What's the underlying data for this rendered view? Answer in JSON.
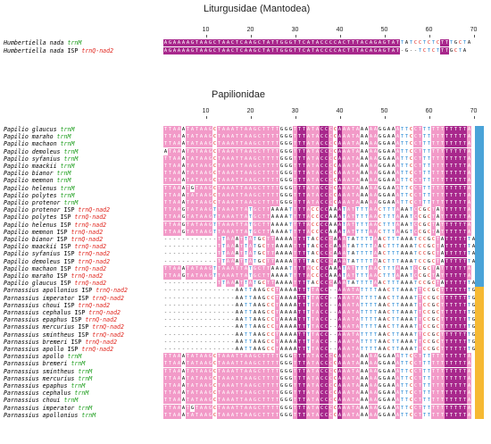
{
  "panel_top": {
    "title": "Liturgusidae (Mantodea)",
    "ruler": [
      "10",
      "20",
      "30",
      "40",
      "50",
      "60",
      "70"
    ],
    "rows": [
      {
        "species": "Humbertiella nada",
        "isp": "",
        "gene": "trnM",
        "gene_color": "#1e9e1e",
        "seq": "AGAAAAGTAAGCTAACTCAAGCTATTGGGTTCATACCCCACTTTACAGAGTATTATCCTCTCTTTGCTA"
      },
      {
        "species": "Humbertiella nada",
        "isp": "ISP",
        "gene": "trnQ-nad2",
        "gene_color": "#e0251d",
        "seq": "AGAAAAGTAAGCTAACTCAAGCTATTGGGTTCATACCCCACTTTACAGAGTAT-G--TCTCTTTGCTA"
      }
    ]
  },
  "panel_bottom": {
    "title": "Papilionidae",
    "ruler": [
      "10",
      "20",
      "30",
      "40",
      "50",
      "60",
      "70"
    ],
    "rows": [
      {
        "species": "Papilio glaucus",
        "isp": "",
        "gene": "trnM",
        "gene_color": "#1e9e1e",
        "seq": "TTAAATATAAGCTAAATTAAGCTTTTGGGTTTATACCCCAAATAAAAAGGAAATTCCTTTTTTTTTTTA"
      },
      {
        "species": "Papilio maraho",
        "isp": "",
        "gene": "trnM",
        "gene_color": "#1e9e1e",
        "seq": "TTAAATATAAGCTAAATTAAGCTTTTGGGTTTATACCCCAAATAAAAAGGAAATTCCTTTTTTTTTTTA"
      },
      {
        "species": "Papilio machaon",
        "isp": "",
        "gene": "trnM",
        "gene_color": "#1e9e1e",
        "seq": "TTAAATATAAGCTAAATTAAGCTTTTGGGTTTATACCCCAAATAAAAAGGAAATTCCTTTTTTTTTTTA"
      },
      {
        "species": "Papilio demoleus",
        "isp": "",
        "gene": "trnM",
        "gene_color": "#1e9e1e",
        "seq": "ATAAATATAAGCTAAATTAAGCTTTTGGGTTTATACCCCAAATAAAAAGGAAATTCCTTTTTTTTTTTA"
      },
      {
        "species": "Papilio syfanius",
        "isp": "",
        "gene": "trnM",
        "gene_color": "#1e9e1e",
        "seq": "TTAAATATAAGCTAAATTAAGCTTTTGGGTTTATACCCCAAATAAAAAGGAAATTCCTTTTTTTTTTTA"
      },
      {
        "species": "Papilio maackii",
        "isp": "",
        "gene": "trnM",
        "gene_color": "#1e9e1e",
        "seq": "TTAAATATAAGCTAAATTAAGCTTTTGGGTTTATACCCCAAATAAAAAGGAAATTCCTTTTTTTTTTTA"
      },
      {
        "species": "Papilio bianor",
        "isp": "",
        "gene": "trnM",
        "gene_color": "#1e9e1e",
        "seq": "TTAAATATAAGCTAAATTAAGCTTTTGGGTTTATACCCCAAATAAAAAGGAAATTCCTTTTTTTTTTTA"
      },
      {
        "species": "Papilio memnon",
        "isp": "",
        "gene": "trnM",
        "gene_color": "#1e9e1e",
        "seq": "TTAAATATAAGCTAAATTAAGCTTTTGGGTTTATACCCCAAATAAAAAGGAAATTCCTTTTTTTTTTTA"
      },
      {
        "species": "Papilio helenus",
        "isp": "",
        "gene": "trnM",
        "gene_color": "#1e9e1e",
        "seq": "TTAAATGTAAGCTAAATTAAGCTTTTGGGTTTATACCCCAAATAAAAAGGAAATTCCTTTTTTTTTTTA"
      },
      {
        "species": "Papilio polytes",
        "isp": "",
        "gene": "trnM",
        "gene_color": "#1e9e1e",
        "seq": "TTAAATATAAGCTAAATTAAGCTTTTGGGTTTATACCCCAAATAAAAAGGAAATTCCTTTTTTTTTTTA"
      },
      {
        "species": "Papilio protenor",
        "isp": "",
        "gene": "trnM",
        "gene_color": "#1e9e1e",
        "seq": "TTAAATATAAGCTAAATTAAGCTTTTGGGTTTATACCCCAAATAAAAAGGAAATTCCTTTTTTTTTTTA"
      },
      {
        "species": "Papilio protenor",
        "isp": "ISP",
        "gene": "trnQ-nad2",
        "gene_color": "#e0251d",
        "seq": "TTAAGTATAAGTTAAATTATGCTTAAAATTTTACCCCAAATATTTTAACTTTAAATCCGCTATTTTTTA"
      },
      {
        "species": "Papilio polytes",
        "isp": "ISP",
        "gene": "trnQ-nad2",
        "gene_color": "#e0251d",
        "seq": "TTAAGTATAAGTTAAATTATGCTTAAAATTTTACCCCAAATATTTTAACTTTAAATCCGCTATTTTTTA"
      },
      {
        "species": "Papilio helenus",
        "isp": "ISP",
        "gene": "trnQ-nad2",
        "gene_color": "#e0251d",
        "seq": "TTAAGTATAAGTTAAATTATGCTTAAAATTTTACCCCAAATATTTTAACTTTAAATCCGCTATTTTTTA"
      },
      {
        "species": "Papilio memnon",
        "isp": "ISP",
        "gene": "trnQ-nad2",
        "gene_color": "#e0251d",
        "seq": "TTAAGTATAAGTTAAATTATGCTTAAAATTTTACCCCAAATATTTTAACTTTAAGTCCGCTATTTTTTA"
      },
      {
        "species": "Papilio bianor",
        "isp": "ISP",
        "gene": "trnQ-nad2",
        "gene_color": "#e0251d",
        "seq": "------------TTAAATTATGCTTAAAATTTTACCCCAAATATTTTAACTTTAAATCCGCTATTTTTTA"
      },
      {
        "species": "Papilio maackii",
        "isp": "ISP",
        "gene": "trnQ-nad2",
        "gene_color": "#e0251d",
        "seq": "------------TTAAATTATGCTTAAAATTTTACCCCAAATATTTTAACTTTAAATCCGCTATTTTTTA"
      },
      {
        "species": "Papilio syfanius",
        "isp": "ISP",
        "gene": "trnQ-nad2",
        "gene_color": "#e0251d",
        "seq": "------------TTAAATTATGCTTAAAATTTTACCCCAAATATTTTAACTTTAAATCCGCTATTTTTTA"
      },
      {
        "species": "Papilio demoleus",
        "isp": "ISP",
        "gene": "trnQ-nad2",
        "gene_color": "#e0251d",
        "seq": "------------TTAAATTATGCTTAAAATTTTACCCCAAATATTTTAACTTTAAATCCGCTATTTTTTA"
      },
      {
        "species": "Papilio machaon",
        "isp": "ISP",
        "gene": "trnQ-nad2",
        "gene_color": "#e0251d",
        "seq": "TTAAATATAAGTTAAATTATGCTTAAAATTTTACCCCAAATATTTTAACTTTAAATCCGCTATTTTTTA"
      },
      {
        "species": "Papilio maraho",
        "isp": "ISP",
        "gene": "trnQ-nad2",
        "gene_color": "#e0251d",
        "seq": "TTAAGTATAAGTTAAATTATGCTTAAAATTTTACCCCAAATATTTTAACTTTAAATCCGCTATTTTTTA"
      },
      {
        "species": "Papilio glaucus",
        "isp": "ISP",
        "gene": "trnQ-nad2",
        "gene_color": "#e0251d",
        "seq": "------------TTAAATTATGCTTAAAATTTTACCCCAAATATTTTAACTTTAAATCCGCTATTTTTTA"
      },
      {
        "species": "Parnassius apollonius",
        "isp": "ISP",
        "gene": "trnQ-nad2",
        "gene_color": "#e0251d",
        "seq": "----------------AATTAAGCCTAAAATTTTACC--AAATATTTTAACTTAAATTCCGCTTTTTTTG"
      },
      {
        "species": "Parnassius imperator",
        "isp": "ISP",
        "gene": "trnQ-nad2",
        "gene_color": "#e0251d",
        "seq": "----------------AATTAAGCCTAAAATTTTACC--AAATATTTTAACTTAAATTCCGCTTTTTTTG"
      },
      {
        "species": "Parnassius choui",
        "isp": "ISP",
        "gene": "trnQ-nad2",
        "gene_color": "#e0251d",
        "seq": "----------------AATTAAGCCTAAAATTTTACC--AAATATTTTAACTTAAATTCCGCTTTTTTTG"
      },
      {
        "species": "Parnassius cephalus",
        "isp": "ISP",
        "gene": "trnQ-nad2",
        "gene_color": "#e0251d",
        "seq": "----------------AATTAAGCCTAAAATTTTACC--AAATATTTTAACTTAAATTCCGCTTTTTTTG"
      },
      {
        "species": "Parnassius epaphus",
        "isp": "ISP",
        "gene": "trnQ-nad2",
        "gene_color": "#e0251d",
        "seq": "----------------AATTAAGCCTAAAATTTTACC--AAATATTTTAACTTAAATTCCGCTTTTTTTG"
      },
      {
        "species": "Parnassius mercurius",
        "isp": "ISP",
        "gene": "trnQ-nad2",
        "gene_color": "#e0251d",
        "seq": "----------------AATTAAGCCTAAAATTTTACC--AAATATTTTAACTTAAATTCCGCTTTTTTTG"
      },
      {
        "species": "Parnassius smintheus",
        "isp": "ISP",
        "gene": "trnQ-nad2",
        "gene_color": "#e0251d",
        "seq": "----------------AATTAAGCCTAAAATTTTACC--AAATATTTTAACTTAAATTCCGCTTTTTTTG"
      },
      {
        "species": "Parnassius bremeri",
        "isp": "ISP",
        "gene": "trnQ-nad2",
        "gene_color": "#e0251d",
        "seq": "----------------AATTAAGCCTAAAATTTTACC--AAATATTTTAACTTAAATTCCGCTTTTTTTG"
      },
      {
        "species": "Parnassius apollo",
        "isp": "ISP",
        "gene": "trnQ-nad2",
        "gene_color": "#e0251d",
        "seq": "----------------AATTAAGCCTAAAATTTTACC--AAATATTTTAACTTAAATTCCGCTTTTTTTG"
      },
      {
        "species": "Parnassius apollo",
        "isp": "",
        "gene": "trnM",
        "gene_color": "#1e9e1e",
        "seq": "TTAAATATAAGCTAAATTAAGCTTTTGGGTTTATACCCCAAATAAAAAGGAAATTCCTTTTTTTTTTTA"
      },
      {
        "species": "Parnassius bremeri",
        "isp": "",
        "gene": "trnM",
        "gene_color": "#1e9e1e",
        "seq": "TTAAATATAAGCTAAATTAAGCTTTTGGGTTTATACCCCAAATAAAAAGGAAATTCCTTTTTTTTTTTA"
      },
      {
        "species": "Parnassius smintheus",
        "isp": "",
        "gene": "trnM",
        "gene_color": "#1e9e1e",
        "seq": "TTAAATATAAGCTAAATTAAGCTTTTGGGTTTATACCCCAAATAAAAAGGAAATTCCTTTTTTTTTTTA"
      },
      {
        "species": "Parnassius mercurius",
        "isp": "",
        "gene": "trnM",
        "gene_color": "#1e9e1e",
        "seq": "TTAAATATAAGCTAAATTAAGCTTTTGGGTTTATACCCCAAATAAAAAGGAAATTCCTTTTTTTTTTTA"
      },
      {
        "species": "Parnassius epaphus",
        "isp": "",
        "gene": "trnM",
        "gene_color": "#1e9e1e",
        "seq": "TTAAATATAAGCTAAATTAAGCTTTTGGGTTTATACCCCAAATAAAAAGGAAATTCCTTTTTTTTTTTA"
      },
      {
        "species": "Parnassius cephalus",
        "isp": "",
        "gene": "trnM",
        "gene_color": "#1e9e1e",
        "seq": "TTAAATATAAGCTAAATTAAGCTTTTGGGTTTATACCCCAAATAAAAAGGAAATTCCTTTTTTTTTTTA"
      },
      {
        "species": "Parnassius choui",
        "isp": "",
        "gene": "trnM",
        "gene_color": "#1e9e1e",
        "seq": "TTAAATATAAGCTAAATTAAGCTTTTGGGTTTATACCCCAAATAAAAAGGAAATTCCTTTTTTTTTTTA"
      },
      {
        "species": "Parnassius imperator",
        "isp": "",
        "gene": "trnM",
        "gene_color": "#1e9e1e",
        "seq": "TTAAATGTAAGCTAAATTAAGCTTTTGGGTTTATACCCCAAATAAAAAGGAAATTCCTTTTTTTTTTTA"
      },
      {
        "species": "Parnassius apollonius",
        "isp": "",
        "gene": "trnM",
        "gene_color": "#1e9e1e",
        "seq": "TTAAATATAAGCTAAATTAAGCTTTTGGGTTTATACCCCAAATAAAAAGGAAATTCCTTTTTTTTTTTA"
      }
    ],
    "group_bars": [
      {
        "group": "Papilio",
        "color": "#4aa3d8"
      },
      {
        "group": "Parnassius",
        "color": "#f6b933"
      }
    ]
  },
  "colors": {
    "A": "#ffffff",
    "T": "#ffffff",
    "G": "#ffffff",
    "C": "#ffffff",
    "A_text": "#000000",
    "T_text": "#2a8bd6",
    "G_text": "#000000",
    "C_text": "#e0251d",
    "conserved_bg": "#a8288c",
    "conserved_text": "#ffffff",
    "partial_bg": "#f29ac8",
    "partial_text": "#ffffff",
    "variant_blue_bg": "#3b4ea8",
    "variant_green_bg": "#3aa43a"
  }
}
